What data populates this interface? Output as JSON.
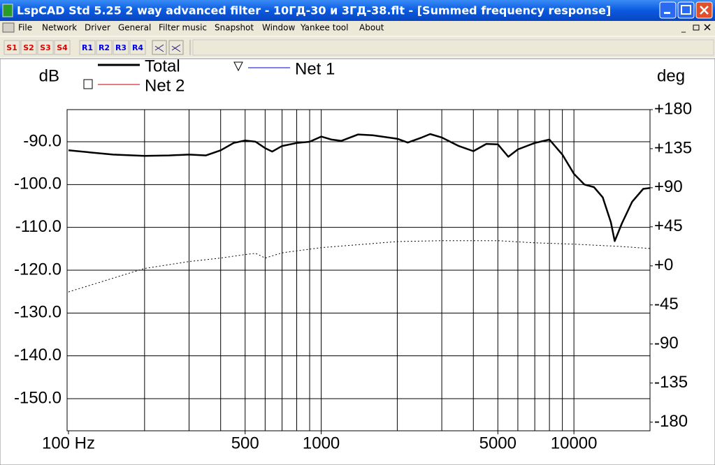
{
  "window": {
    "title": "LspCAD Std 5.25 2 way advanced filter - 10ГД-30 и 3ГД-38.flt - [Summed frequency response]",
    "menu": [
      "File",
      "Network",
      "Driver",
      "General",
      "Filter music",
      "Snapshot",
      "Window",
      "Yankee tool",
      "About"
    ],
    "toolbar": [
      {
        "label": "S1",
        "color": "#e00000"
      },
      {
        "label": "S2",
        "color": "#e00000"
      },
      {
        "label": "S3",
        "color": "#e00000"
      },
      {
        "label": "S4",
        "color": "#e00000"
      },
      {
        "label": "R1",
        "color": "#0000e0"
      },
      {
        "label": "R2",
        "color": "#0000e0"
      },
      {
        "label": "R3",
        "color": "#0000e0"
      },
      {
        "label": "R4",
        "color": "#0000e0"
      }
    ]
  },
  "chart_data": {
    "type": "line",
    "ylabel": "dB",
    "y2label": "deg",
    "xscale": "log",
    "xlim": [
      100,
      20000
    ],
    "xticks": [
      {
        "value": 100,
        "label": "100 Hz"
      },
      500,
      1000,
      5000,
      10000
    ],
    "x_gridlines": [
      200,
      300,
      400,
      500,
      600,
      700,
      800,
      900,
      1000,
      2000,
      3000,
      4000,
      5000,
      6000,
      7000,
      8000,
      9000,
      10000
    ],
    "ylim": [
      -157.5,
      -82.5
    ],
    "yticks": [
      {
        "value": -90,
        "label": "-90.0"
      },
      {
        "value": -100,
        "label": "-100.0"
      },
      {
        "value": -110,
        "label": "-110.0"
      },
      {
        "value": -120,
        "label": "-120.0"
      },
      {
        "value": -130,
        "label": "-130.0"
      },
      {
        "value": -140,
        "label": "-140.0"
      },
      {
        "value": -150,
        "label": "-150.0"
      }
    ],
    "y2lim": [
      -190,
      180
    ],
    "y2ticks": [
      {
        "value": 180,
        "label": "+180"
      },
      {
        "value": 135,
        "label": "+135"
      },
      {
        "value": 90,
        "label": "+90"
      },
      {
        "value": 45,
        "label": "+45"
      },
      {
        "value": 0,
        "label": "+0"
      },
      -45,
      -90,
      -135,
      -180
    ],
    "grid": true,
    "series": [
      {
        "name": "Total",
        "color": "#000000",
        "x": [
          100,
          150,
          200,
          250,
          300,
          350,
          400,
          450,
          500,
          550,
          600,
          640,
          700,
          800,
          900,
          1000,
          1100,
          1200,
          1400,
          1600,
          2000,
          2200,
          2500,
          2700,
          3000,
          3500,
          4000,
          4500,
          5000,
          5500,
          6000,
          7000,
          8000,
          9000,
          10000,
          11000,
          12000,
          13000,
          14000,
          14500,
          15500,
          17000,
          18800,
          20000
        ],
        "values": [
          -92.0,
          -93.0,
          -93.3,
          -93.2,
          -93.0,
          -93.2,
          -92.0,
          -90.3,
          -89.7,
          -90.0,
          -91.5,
          -92.3,
          -91.0,
          -90.3,
          -90.0,
          -88.8,
          -89.5,
          -89.8,
          -88.3,
          -88.5,
          -89.3,
          -90.2,
          -89.0,
          -88.2,
          -89.0,
          -91.0,
          -92.2,
          -90.5,
          -90.6,
          -93.5,
          -91.8,
          -90.3,
          -89.5,
          -93.0,
          -97.5,
          -100.0,
          -100.6,
          -103.0,
          -108.8,
          -113.2,
          -109.0,
          -104.0,
          -101.0,
          -100.8
        ]
      },
      {
        "color": "#000000",
        "axis": "y2",
        "style": "dotted",
        "x": [
          100,
          200,
          300,
          400,
          500,
          550,
          600,
          700,
          1000,
          2000,
          3000,
          5000,
          7000,
          10000,
          15000,
          20000
        ],
        "values": [
          -30,
          -3,
          5,
          9,
          13,
          14.5,
          9,
          15,
          21,
          28,
          29,
          29,
          26.5,
          25,
          22.5,
          20
        ]
      },
      {
        "name": "Net 1",
        "color": "#0000cc",
        "marker": "triangle",
        "x": [],
        "values": []
      },
      {
        "name": "Net 2",
        "color": "#cc0000",
        "marker": "square",
        "x": [],
        "values": []
      }
    ]
  }
}
